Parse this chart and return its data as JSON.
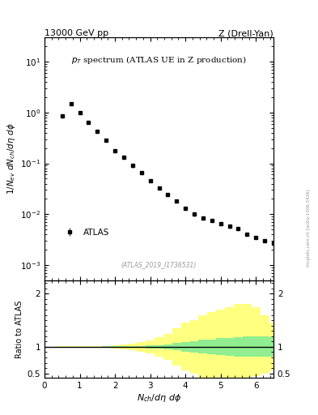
{
  "title_left": "13000 GeV pp",
  "title_right": "Z (Drell-Yan)",
  "main_subtitle": "p$_T$ spectrum (ATLAS UE in Z production)",
  "ylabel_main": "1/N$_{ev}$ dN$_{ch}$/dη dφ",
  "ylabel_ratio": "Ratio to ATLAS",
  "xlabel": "N$_{ch}$/dη dφ",
  "watermark": "(ATLAS_2019_I1736531)",
  "side_text": "mcplots.cern.ch [arXiv:1306.3436]",
  "legend_label": "ATLAS",
  "data_x": [
    0.5,
    0.75,
    1.0,
    1.25,
    1.5,
    1.75,
    2.0,
    2.25,
    2.5,
    2.75,
    3.0,
    3.25,
    3.5,
    3.75,
    4.0,
    4.25,
    4.5,
    4.75,
    5.0,
    5.25,
    5.5,
    5.75,
    6.0,
    6.25,
    6.5
  ],
  "data_y": [
    0.85,
    1.5,
    1.0,
    0.65,
    0.42,
    0.28,
    0.18,
    0.13,
    0.09,
    0.065,
    0.045,
    0.033,
    0.024,
    0.018,
    0.013,
    0.01,
    0.0085,
    0.0075,
    0.0065,
    0.0058,
    0.0052,
    0.004,
    0.0035,
    0.003,
    0.0027
  ],
  "data_yerr": [
    0.05,
    0.08,
    0.06,
    0.04,
    0.025,
    0.018,
    0.012,
    0.009,
    0.007,
    0.005,
    0.003,
    0.002,
    0.0015,
    0.0012,
    0.001,
    0.0008,
    0.0007,
    0.0006,
    0.0005,
    0.0005,
    0.0004,
    0.0003,
    0.0003,
    0.0002,
    0.0002
  ],
  "ratio_x_edges": [
    0.5,
    0.75,
    1.0,
    1.25,
    1.5,
    1.75,
    2.0,
    2.25,
    2.5,
    2.75,
    3.0,
    3.25,
    3.5,
    3.75,
    4.0,
    4.25,
    4.5,
    4.75,
    5.0,
    5.25,
    5.5,
    5.75,
    6.0,
    6.25,
    6.5
  ],
  "ratio_green_upper": [
    1.005,
    1.005,
    1.005,
    1.005,
    1.006,
    1.007,
    1.01,
    1.012,
    1.015,
    1.02,
    1.025,
    1.035,
    1.05,
    1.07,
    1.09,
    1.11,
    1.13,
    1.14,
    1.16,
    1.17,
    1.18,
    1.19,
    1.19,
    1.19,
    1.18
  ],
  "ratio_green_lower": [
    0.995,
    0.995,
    0.995,
    0.995,
    0.994,
    0.993,
    0.99,
    0.988,
    0.985,
    0.98,
    0.975,
    0.965,
    0.95,
    0.93,
    0.91,
    0.89,
    0.87,
    0.86,
    0.84,
    0.83,
    0.82,
    0.81,
    0.81,
    0.81,
    0.82
  ],
  "ratio_yellow_upper": [
    1.01,
    1.01,
    1.01,
    1.012,
    1.015,
    1.02,
    1.03,
    1.04,
    1.06,
    1.09,
    1.12,
    1.18,
    1.25,
    1.35,
    1.45,
    1.5,
    1.6,
    1.65,
    1.7,
    1.75,
    1.8,
    1.8,
    1.75,
    1.6,
    1.45
  ],
  "ratio_yellow_lower": [
    0.99,
    0.99,
    0.99,
    0.988,
    0.985,
    0.98,
    0.97,
    0.96,
    0.94,
    0.91,
    0.88,
    0.82,
    0.75,
    0.65,
    0.55,
    0.5,
    0.42,
    0.4,
    0.38,
    0.36,
    0.35,
    0.38,
    0.45,
    0.5,
    0.55
  ],
  "xlim": [
    0,
    6.5
  ],
  "ylim_main": [
    0.0005,
    30
  ],
  "ylim_ratio": [
    0.42,
    2.25
  ],
  "marker_color": "black",
  "marker_size": 3.5,
  "green_color": "#90EE90",
  "yellow_color": "#FFFF80"
}
